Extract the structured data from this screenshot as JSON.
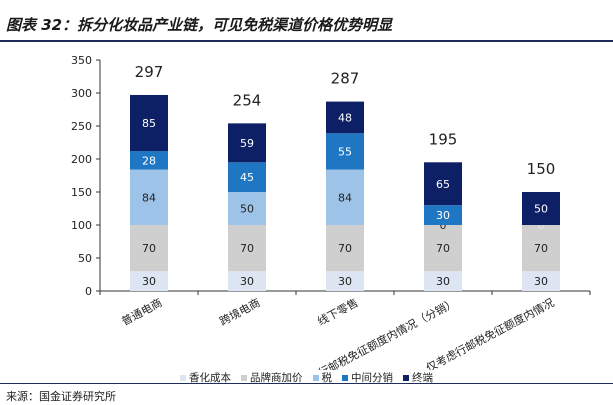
{
  "header": {
    "title": "图表 32：拆分化妆品产业链，可见免税渠道价格优势明显"
  },
  "footer": {
    "source": "来源：国金证券研究所"
  },
  "chart_data": {
    "type": "bar",
    "stacked": true,
    "categories": [
      "普通电商",
      "跨境电商",
      "线下零售",
      "仅考虑行邮税免征额度内情况（分销）",
      "仅考虑行邮税免征额度内情况"
    ],
    "series": [
      {
        "name": "香化成本",
        "color": "#dde4f2",
        "values": [
          30,
          30,
          30,
          30,
          30
        ]
      },
      {
        "name": "品牌商加价",
        "color": "#cfcfcf",
        "values": [
          70,
          70,
          70,
          70,
          70
        ]
      },
      {
        "name": "税",
        "color": "#9ec3e8",
        "values": [
          84,
          50,
          84,
          0,
          0
        ]
      },
      {
        "name": "中间分销",
        "color": "#1f77c4",
        "values": [
          28,
          45,
          55,
          30,
          0
        ]
      },
      {
        "name": "终端",
        "color": "#0d2066",
        "values": [
          85,
          59,
          48,
          65,
          50
        ]
      }
    ],
    "totals": [
      297,
      254,
      287,
      195,
      150
    ],
    "ylim": [
      0,
      350
    ],
    "yticks": [
      0,
      50,
      100,
      150,
      200,
      250,
      300,
      350
    ],
    "title": "",
    "xlabel": "",
    "ylabel": ""
  }
}
